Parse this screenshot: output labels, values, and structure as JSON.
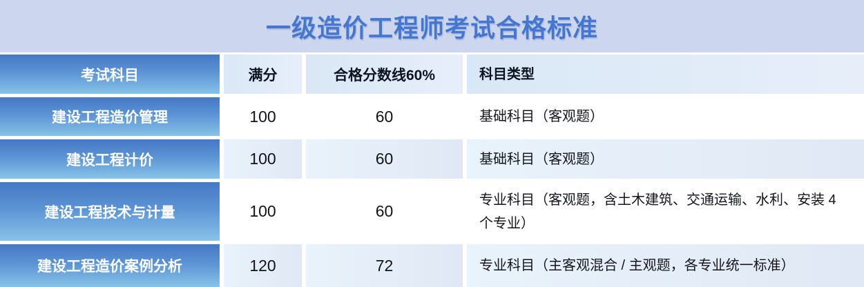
{
  "title": "一级造价工程师考试合格标准",
  "colors": {
    "page_background": "#ccd6ee",
    "title_text": "#4577d0",
    "subject_gradient_top": "#4678c5",
    "subject_gradient_bottom": "#87c3e8",
    "header_cell_background": "#dde9f7",
    "tinted_cell_background": "#e5eef9",
    "cell_gap": "#ffffff",
    "dark_text": "#14161c"
  },
  "chart_data": {
    "type": "table",
    "title": "一级造价工程师考试合格标准",
    "columns": [
      "考试科目",
      "满分",
      "合格分数线60%",
      "科目类型"
    ],
    "rows": [
      [
        "建设工程造价管理",
        100,
        60,
        "基础科目（客观题）"
      ],
      [
        "建设工程计价",
        100,
        60,
        "基础科目（客观题）"
      ],
      [
        "建设工程技术与计量",
        100,
        60,
        "专业科目（客观题，含土木建筑、交通运输、水利、安装 4 个专业）"
      ],
      [
        "建设工程造价案例分析",
        120,
        72,
        "专业科目（主客观混合 / 主观题，各专业统一标准）"
      ]
    ]
  },
  "table": {
    "headers": {
      "subject": "考试科目",
      "full_score": "满分",
      "pass_line": "合格分数线60%",
      "subject_type": "科目类型"
    },
    "rows": [
      {
        "subject": "建设工程造价管理",
        "full_score": "100",
        "pass_score": "60",
        "type": "基础科目（客观题）"
      },
      {
        "subject": "建设工程计价",
        "full_score": "100",
        "pass_score": "60",
        "type": "基础科目（客观题）"
      },
      {
        "subject": "建设工程技术与计量",
        "full_score": "100",
        "pass_score": "60",
        "type": "专业科目（客观题，含土木建筑、交通运输、水利、安装 4 个专业）"
      },
      {
        "subject": "建设工程造价案例分析",
        "full_score": "120",
        "pass_score": "72",
        "type": "专业科目（主客观混合 / 主观题，各专业统一标准）"
      }
    ]
  }
}
